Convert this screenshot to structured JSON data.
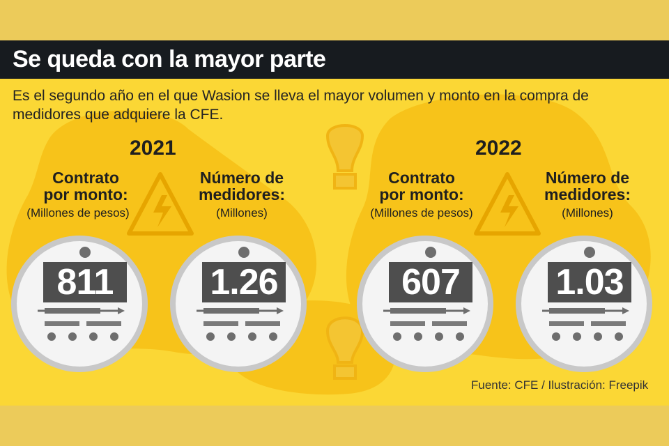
{
  "header": {
    "title": "Se queda con la mayor parte",
    "subtitle": "Es el segundo año en el que Wasion se lleva el mayor volumen y monto en la compra de medidores que adquiere la CFE."
  },
  "years": [
    {
      "year": "2021",
      "contract": {
        "label_line1": "Contrato",
        "label_line2": "por monto:",
        "unit": "(Millones de pesos)",
        "value": "811"
      },
      "meters": {
        "label_line1": "Número de",
        "label_line2": "medidores:",
        "unit": "(Millones)",
        "value": "1.26"
      }
    },
    {
      "year": "2022",
      "contract": {
        "label_line1": "Contrato",
        "label_line2": "por monto:",
        "unit": "(Millones de pesos)",
        "value": "607"
      },
      "meters": {
        "label_line1": "Número de",
        "label_line2": "medidores:",
        "unit": "(Millones)",
        "value": "1.03"
      }
    }
  ],
  "source": "Fuente: CFE / Ilustración: Freepik",
  "colors": {
    "background": "#fbd735",
    "blob": "#f7c31a",
    "header_bg": "#171b1f",
    "display": "#4e4e4e"
  }
}
